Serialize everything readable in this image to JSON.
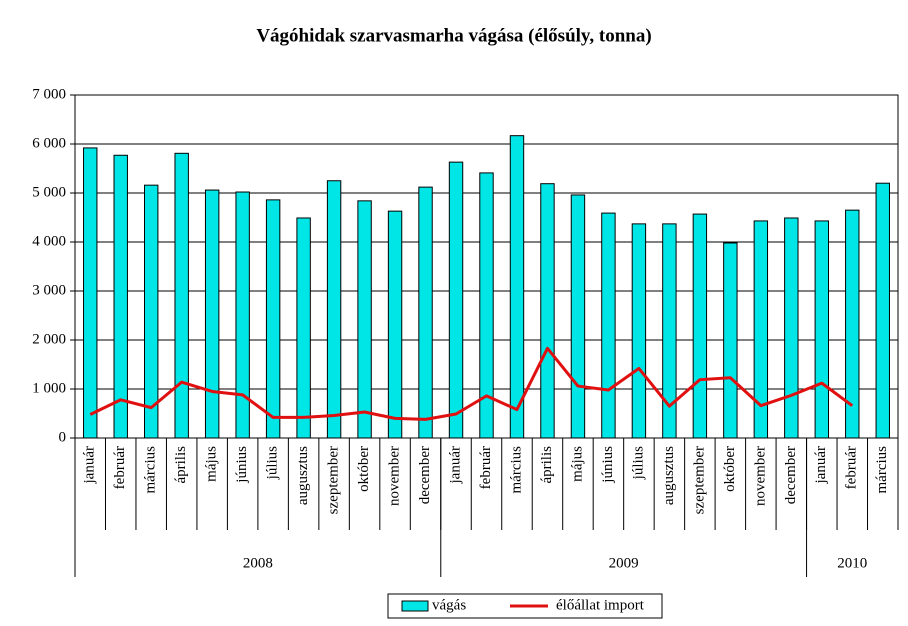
{
  "chart_data": {
    "type": "bar-line",
    "title": "Vágóhidak szarvasmarha vágása (élősúly, tonna)",
    "groups": [
      {
        "label": "2008",
        "categories": [
          "január",
          "február",
          "március",
          "április",
          "május",
          "június",
          "július",
          "augusztus",
          "szeptember",
          "október",
          "november",
          "december"
        ]
      },
      {
        "label": "2009",
        "categories": [
          "január",
          "február",
          "március",
          "április",
          "május",
          "június",
          "július",
          "augusztus",
          "szeptember",
          "október",
          "november",
          "december"
        ]
      },
      {
        "label": "2010",
        "categories": [
          "január",
          "február",
          "március"
        ]
      }
    ],
    "series": [
      {
        "name": "vágás",
        "type": "bar",
        "color": "#00e6e6",
        "values": [
          5920,
          5770,
          5160,
          5810,
          5060,
          5020,
          4860,
          4490,
          5250,
          4840,
          4630,
          5120,
          5630,
          5410,
          6170,
          5190,
          4960,
          4590,
          4370,
          4370,
          4570,
          3980,
          4430,
          4490,
          4430,
          4650,
          5200
        ]
      },
      {
        "name": "élőállat import",
        "type": "line",
        "color": "#e01010",
        "values": [
          480,
          780,
          620,
          1140,
          950,
          880,
          420,
          420,
          460,
          530,
          400,
          380,
          490,
          860,
          580,
          1830,
          1060,
          980,
          1420,
          650,
          1190,
          1230,
          660,
          870,
          1120,
          660,
          null
        ]
      }
    ],
    "ylim": [
      0,
      7000
    ],
    "yticks": [
      0,
      {
        "value": 1000,
        "label": "1 000"
      },
      {
        "value": 2000,
        "label": "2 000"
      },
      {
        "value": 3000,
        "label": "3 000"
      },
      {
        "value": 4000,
        "label": "4 000"
      },
      {
        "value": 5000,
        "label": "5 000"
      },
      {
        "value": 6000,
        "label": "6 000"
      },
      {
        "value": 7000,
        "label": "7 000"
      }
    ],
    "grid": true
  }
}
